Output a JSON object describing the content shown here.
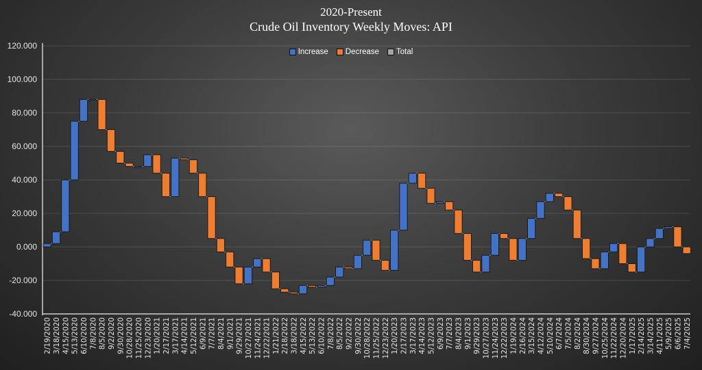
{
  "chart_data": {
    "type": "waterfall",
    "title": "2020-Present",
    "subtitle": "Crude Oil Inventory Weekly Moves:  API",
    "xlabel": "",
    "ylabel": "",
    "ylim": [
      -40,
      120
    ],
    "yticks": [
      "120.000",
      "100.000",
      "80.000",
      "60.000",
      "40.000",
      "20.000",
      "0.000",
      "-20.000",
      "-40.000"
    ],
    "grid": true,
    "legend_position": "top-center",
    "legend": [
      "Increase",
      "Decrease",
      "Total"
    ],
    "colors": {
      "increase": "#4472c4",
      "decrease": "#ed7d31",
      "total": "#a5a5a5"
    },
    "categories": [
      "2/19/2020",
      "3/18/2020",
      "4/15/2020",
      "5/13/2020",
      "6/10/2020",
      "7/8/2020",
      "8/5/2020",
      "9/2/2020",
      "9/30/2020",
      "10/28/2020",
      "11/25/2020",
      "12/23/2020",
      "1/20/2021",
      "2/17/2021",
      "3/17/2021",
      "4/14/2021",
      "5/12/2021",
      "6/9/2021",
      "7/7/2021",
      "8/4/2021",
      "9/1/2021",
      "9/29/2021",
      "10/27/2021",
      "11/24/2021",
      "12/22/2021",
      "1/21/2022",
      "2/18/2022",
      "3/18/2022",
      "4/15/2022",
      "5/13/2022",
      "6/10/2022",
      "7/8/2022",
      "8/5/2022",
      "9/2/2022",
      "9/30/2022",
      "10/28/2022",
      "11/25/2022",
      "12/23/2022",
      "1/20/2023",
      "2/17/2023",
      "3/17/2023",
      "4/14/2023",
      "5/12/2023",
      "6/9/2023",
      "7/7/2023",
      "8/4/2023",
      "9/1/2023",
      "9/29/2023",
      "10/27/2023",
      "11/24/2023",
      "12/22/2023",
      "1/19/2024",
      "2/16/2024",
      "3/15/2024",
      "4/12/2024",
      "5/10/2024",
      "6/7/2024",
      "7/5/2024",
      "8/2/2024",
      "8/30/2024",
      "9/27/2024",
      "10/25/2024",
      "11/22/2024",
      "12/20/2024",
      "1/17/2025",
      "2/14/2025",
      "3/14/2025",
      "4/11/2025",
      "5/9/2025",
      "6/6/2025",
      "7/4/2025"
    ],
    "cumulative_levels": [
      2,
      9,
      40,
      75,
      88,
      88,
      70,
      57,
      50,
      48,
      48,
      55,
      44,
      30,
      53,
      52,
      44,
      30,
      5,
      -3,
      -12,
      -22,
      -12,
      -7,
      -15,
      -25,
      -27,
      -28,
      -23,
      -24,
      -23,
      -18,
      -12,
      -13,
      -5,
      4,
      -8,
      -14,
      10,
      38,
      44,
      35,
      26,
      27,
      22,
      8,
      -8,
      -15,
      -5,
      8,
      5,
      -8,
      5,
      17,
      27,
      32,
      30,
      22,
      5,
      -7,
      -13,
      -3,
      2,
      -10,
      -15,
      0,
      5,
      11,
      12,
      0,
      -4
    ]
  }
}
